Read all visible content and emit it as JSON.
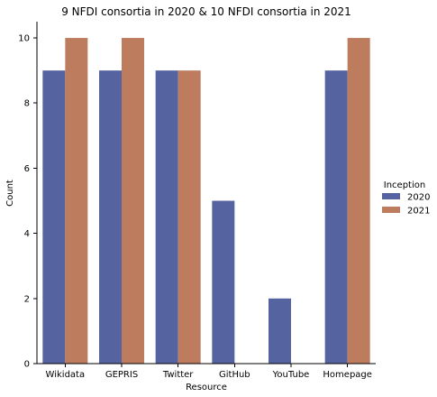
{
  "chart_data": {
    "type": "bar",
    "title": "9 NFDI consortia in 2020 & 10 NFDI consortia in 2021",
    "xlabel": "Resource",
    "ylabel": "Count",
    "ylim": [
      0,
      10.5
    ],
    "yticks": [
      0,
      2,
      4,
      6,
      8,
      10
    ],
    "categories": [
      "Wikidata",
      "GEPRIS",
      "Twitter",
      "GitHub",
      "YouTube",
      "Homepage"
    ],
    "series": [
      {
        "name": "2020",
        "values": [
          9,
          9,
          9,
          5,
          2,
          9
        ],
        "color": "#5563a0"
      },
      {
        "name": "2021",
        "values": [
          10,
          10,
          9,
          null,
          null,
          10
        ],
        "color": "#bd7c5e"
      }
    ],
    "legend": {
      "title": "Inception",
      "placement": "right"
    },
    "grid": false
  }
}
